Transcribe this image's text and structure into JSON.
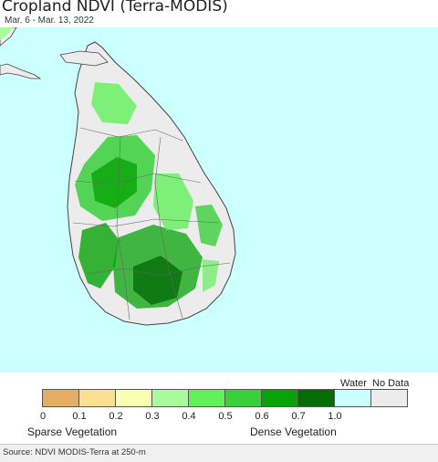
{
  "title": "Cropland NDVI (Terra-MODIS)",
  "date_range": "Mar. 6 - Mar. 13, 2022",
  "colors": {
    "ocean": "#ccffff",
    "land_no_data": "#ececec",
    "border": "#444444"
  },
  "legend": {
    "water_label": "Water",
    "no_data_label": "No Data",
    "swatches": [
      {
        "name": "0-0.1",
        "color": "#e6ad65"
      },
      {
        "name": "0.1-0.2",
        "color": "#fddf93"
      },
      {
        "name": "0.2-0.3",
        "color": "#f9ffb2"
      },
      {
        "name": "0.3-0.4",
        "color": "#a7fb9c"
      },
      {
        "name": "0.4-0.5",
        "color": "#63f05b"
      },
      {
        "name": "0.5-0.6",
        "color": "#3ad03b"
      },
      {
        "name": "0.6-0.7",
        "color": "#07a308"
      },
      {
        "name": "0.7-1.0",
        "color": "#046d06"
      },
      {
        "name": "water",
        "color": "#ccffff"
      },
      {
        "name": "no-data",
        "color": "#ececec"
      }
    ],
    "ticks": [
      "0",
      "0.1",
      "0.2",
      "0.3",
      "0.4",
      "0.5",
      "0.6",
      "0.7",
      "1.0"
    ],
    "sparse_label": "Sparse Vegetation",
    "dense_label": "Dense Vegetation"
  },
  "source": "Source: NDVI MODIS-Terra at 250-m"
}
